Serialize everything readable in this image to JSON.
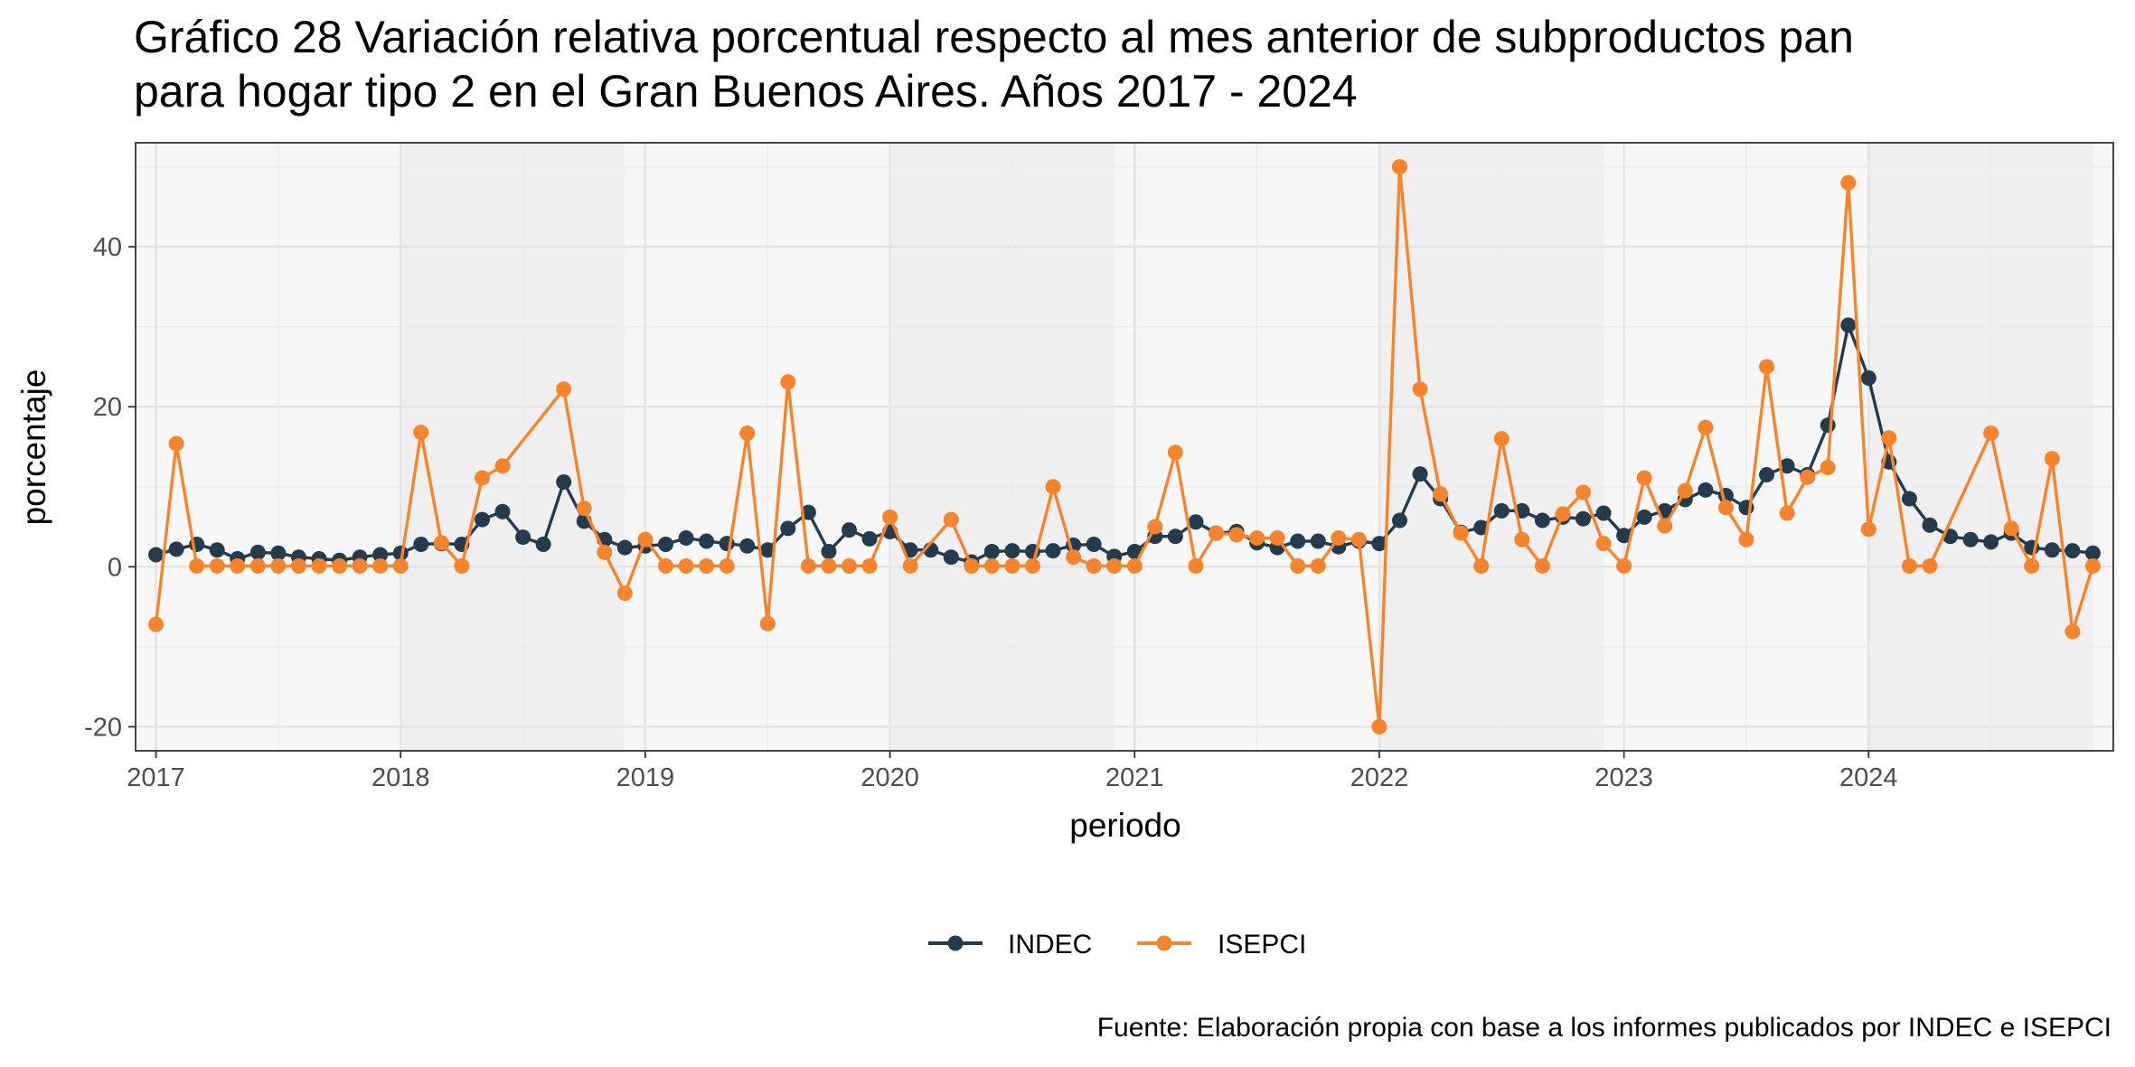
{
  "chart_data": {
    "type": "line",
    "title_lines": [
      "Gráfico 28 Variación relativa porcentual respecto al mes anterior de subproductos pan",
      "para hogar tipo 2 en el Gran Buenos Aires. Años 2017 - 2024"
    ],
    "xlabel": "periodo",
    "ylabel": "porcentaje",
    "caption": "Fuente: Elaboración propia con base a los informes publicados por INDEC e ISEPCI",
    "x_tick_labels": [
      "2017",
      "2018",
      "2019",
      "2020",
      "2021",
      "2022",
      "2023",
      "2024"
    ],
    "y_tick_labels": [
      "-20",
      "0",
      "20",
      "40"
    ],
    "y_ticks": [
      -20,
      0,
      20,
      40
    ],
    "x_range": [
      "2016-12",
      "2025-01"
    ],
    "ylim": [
      -23,
      53
    ],
    "grid": true,
    "shaded_bands": [
      "2018",
      "2020",
      "2022",
      "2024"
    ],
    "legend_position": "bottom",
    "series": [
      {
        "name": "INDEC",
        "color": "#233b4d",
        "points": [
          [
            "2017-01",
            1.5
          ],
          [
            "2017-02",
            2.2
          ],
          [
            "2017-03",
            2.8
          ],
          [
            "2017-04",
            2.1
          ],
          [
            "2017-05",
            1.0
          ],
          [
            "2017-06",
            1.8
          ],
          [
            "2017-07",
            1.7
          ],
          [
            "2017-08",
            1.2
          ],
          [
            "2017-09",
            1.0
          ],
          [
            "2017-10",
            0.8
          ],
          [
            "2017-11",
            1.2
          ],
          [
            "2017-12",
            1.5
          ],
          [
            "2018-01",
            1.7
          ],
          [
            "2018-02",
            2.8
          ],
          [
            "2018-03",
            2.9
          ],
          [
            "2018-04",
            2.8
          ],
          [
            "2018-05",
            5.9
          ],
          [
            "2018-06",
            6.9
          ],
          [
            "2018-07",
            3.7
          ],
          [
            "2018-08",
            2.8
          ],
          [
            "2018-09",
            10.6
          ],
          [
            "2018-10",
            5.7
          ],
          [
            "2018-11",
            3.4
          ],
          [
            "2018-12",
            2.4
          ],
          [
            "2019-01",
            2.6
          ],
          [
            "2019-02",
            2.8
          ],
          [
            "2019-03",
            3.6
          ],
          [
            "2019-04",
            3.2
          ],
          [
            "2019-05",
            2.9
          ],
          [
            "2019-06",
            2.6
          ],
          [
            "2019-07",
            2.1
          ],
          [
            "2019-08",
            4.8
          ],
          [
            "2019-09",
            6.8
          ],
          [
            "2019-10",
            1.9
          ],
          [
            "2019-11",
            4.6
          ],
          [
            "2019-12",
            3.5
          ],
          [
            "2020-01",
            4.4
          ],
          [
            "2020-02",
            2.1
          ],
          [
            "2020-03",
            2.1
          ],
          [
            "2020-04",
            1.2
          ],
          [
            "2020-05",
            0.6
          ],
          [
            "2020-06",
            1.9
          ],
          [
            "2020-07",
            2.0
          ],
          [
            "2020-08",
            1.9
          ],
          [
            "2020-09",
            2.0
          ],
          [
            "2020-10",
            2.7
          ],
          [
            "2020-11",
            2.8
          ],
          [
            "2020-12",
            1.3
          ],
          [
            "2021-01",
            1.9
          ],
          [
            "2021-02",
            3.8
          ],
          [
            "2021-03",
            3.8
          ],
          [
            "2021-04",
            5.6
          ],
          [
            "2021-05",
            4.2
          ],
          [
            "2021-06",
            4.4
          ],
          [
            "2021-07",
            3.0
          ],
          [
            "2021-08",
            2.4
          ],
          [
            "2021-09",
            3.2
          ],
          [
            "2021-10",
            3.2
          ],
          [
            "2021-11",
            2.5
          ],
          [
            "2021-12",
            3.2
          ],
          [
            "2022-01",
            2.9
          ],
          [
            "2022-02",
            5.8
          ],
          [
            "2022-03",
            11.6
          ],
          [
            "2022-04",
            8.5
          ],
          [
            "2022-05",
            4.3
          ],
          [
            "2022-06",
            4.9
          ],
          [
            "2022-07",
            7.0
          ],
          [
            "2022-08",
            7.0
          ],
          [
            "2022-09",
            5.8
          ],
          [
            "2022-10",
            6.2
          ],
          [
            "2022-11",
            6.0
          ],
          [
            "2022-12",
            6.7
          ],
          [
            "2023-01",
            3.9
          ],
          [
            "2023-02",
            6.2
          ],
          [
            "2023-03",
            7.0
          ],
          [
            "2023-04",
            8.4
          ],
          [
            "2023-05",
            9.6
          ],
          [
            "2023-06",
            8.9
          ],
          [
            "2023-07",
            7.4
          ],
          [
            "2023-08",
            11.5
          ],
          [
            "2023-09",
            12.6
          ],
          [
            "2023-10",
            11.5
          ],
          [
            "2023-11",
            17.7
          ],
          [
            "2023-12",
            30.2
          ],
          [
            "2024-01",
            23.6
          ],
          [
            "2024-02",
            13.1
          ],
          [
            "2024-03",
            8.5
          ],
          [
            "2024-04",
            5.2
          ],
          [
            "2024-05",
            3.8
          ],
          [
            "2024-06",
            3.4
          ],
          [
            "2024-07",
            3.1
          ],
          [
            "2024-08",
            4.2
          ],
          [
            "2024-09",
            2.4
          ],
          [
            "2024-10",
            2.1
          ],
          [
            "2024-11",
            2.0
          ],
          [
            "2024-12",
            1.7
          ]
        ]
      },
      {
        "name": "ISEPCI",
        "color": "#f5842c",
        "points": [
          [
            "2017-01",
            -7.2
          ],
          [
            "2017-02",
            15.4
          ],
          [
            "2017-03",
            0.1
          ],
          [
            "2017-04",
            0.1
          ],
          [
            "2017-05",
            0.1
          ],
          [
            "2017-06",
            0.1
          ],
          [
            "2017-07",
            0.1
          ],
          [
            "2017-08",
            0.1
          ],
          [
            "2017-09",
            0.1
          ],
          [
            "2017-10",
            0.1
          ],
          [
            "2017-11",
            0.1
          ],
          [
            "2017-12",
            0.1
          ],
          [
            "2018-01",
            0.1
          ],
          [
            "2018-02",
            16.8
          ],
          [
            "2018-03",
            3.0
          ],
          [
            "2018-04",
            0.1
          ],
          [
            "2018-05",
            11.1
          ],
          [
            "2018-06",
            12.6
          ],
          [
            "2018-07",
            null
          ],
          [
            "2018-08",
            null
          ],
          [
            "2018-09",
            22.2
          ],
          [
            "2018-10",
            7.3
          ],
          [
            "2018-11",
            1.8
          ],
          [
            "2018-12",
            -3.3
          ],
          [
            "2019-01",
            3.4
          ],
          [
            "2019-02",
            0.1
          ],
          [
            "2019-03",
            0.1
          ],
          [
            "2019-04",
            0.1
          ],
          [
            "2019-05",
            0.1
          ],
          [
            "2019-06",
            16.7
          ],
          [
            "2019-07",
            -7.1
          ],
          [
            "2019-08",
            23.1
          ],
          [
            "2019-09",
            0.1
          ],
          [
            "2019-10",
            0.1
          ],
          [
            "2019-11",
            0.1
          ],
          [
            "2019-12",
            0.1
          ],
          [
            "2020-01",
            6.2
          ],
          [
            "2020-02",
            0.1
          ],
          [
            "2020-03",
            null
          ],
          [
            "2020-04",
            5.9
          ],
          [
            "2020-05",
            0.1
          ],
          [
            "2020-06",
            0.1
          ],
          [
            "2020-07",
            0.1
          ],
          [
            "2020-08",
            0.1
          ],
          [
            "2020-09",
            10.0
          ],
          [
            "2020-10",
            1.2
          ],
          [
            "2020-11",
            0.1
          ],
          [
            "2020-12",
            0.1
          ],
          [
            "2021-01",
            0.1
          ],
          [
            "2021-02",
            5.0
          ],
          [
            "2021-03",
            14.3
          ],
          [
            "2021-04",
            0.1
          ],
          [
            "2021-05",
            4.2
          ],
          [
            "2021-06",
            4.0
          ],
          [
            "2021-07",
            3.6
          ],
          [
            "2021-08",
            3.6
          ],
          [
            "2021-09",
            0.1
          ],
          [
            "2021-10",
            0.1
          ],
          [
            "2021-11",
            3.6
          ],
          [
            "2021-12",
            3.4
          ],
          [
            "2022-01",
            -20.0
          ],
          [
            "2022-02",
            50.0
          ],
          [
            "2022-03",
            22.2
          ],
          [
            "2022-04",
            9.1
          ],
          [
            "2022-05",
            4.2
          ],
          [
            "2022-06",
            0.1
          ],
          [
            "2022-07",
            16.0
          ],
          [
            "2022-08",
            3.4
          ],
          [
            "2022-09",
            0.1
          ],
          [
            "2022-10",
            6.6
          ],
          [
            "2022-11",
            9.3
          ],
          [
            "2022-12",
            2.9
          ],
          [
            "2023-01",
            0.1
          ],
          [
            "2023-02",
            11.1
          ],
          [
            "2023-03",
            5.1
          ],
          [
            "2023-04",
            9.5
          ],
          [
            "2023-05",
            17.4
          ],
          [
            "2023-06",
            7.4
          ],
          [
            "2023-07",
            3.4
          ],
          [
            "2023-08",
            25.0
          ],
          [
            "2023-09",
            6.7
          ],
          [
            "2023-10",
            11.2
          ],
          [
            "2023-11",
            12.4
          ],
          [
            "2023-12",
            48.0
          ],
          [
            "2024-01",
            4.7
          ],
          [
            "2024-02",
            16.1
          ],
          [
            "2024-03",
            0.1
          ],
          [
            "2024-04",
            0.1
          ],
          [
            "2024-05",
            null
          ],
          [
            "2024-06",
            null
          ],
          [
            "2024-07",
            16.7
          ],
          [
            "2024-08",
            4.8
          ],
          [
            "2024-09",
            0.1
          ],
          [
            "2024-10",
            13.5
          ],
          [
            "2024-11",
            -8.1
          ],
          [
            "2024-12",
            0.1
          ]
        ]
      }
    ]
  }
}
